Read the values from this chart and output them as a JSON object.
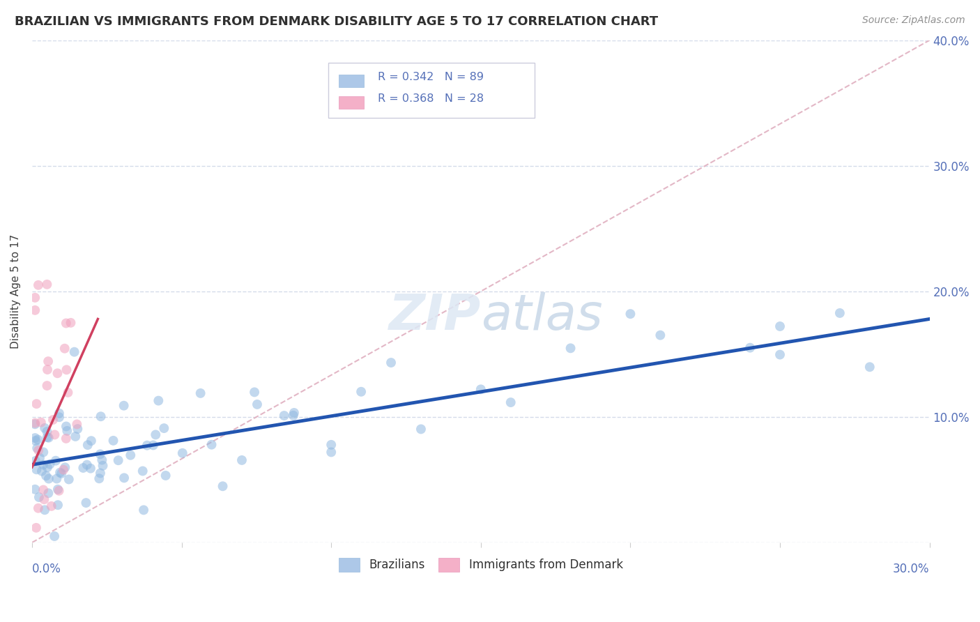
{
  "title": "BRAZILIAN VS IMMIGRANTS FROM DENMARK DISABILITY AGE 5 TO 17 CORRELATION CHART",
  "source": "Source: ZipAtlas.com",
  "ylabel_label": "Disability Age 5 to 17",
  "xlim": [
    0.0,
    0.3
  ],
  "ylim": [
    0.0,
    0.4
  ],
  "ytick_positions": [
    0.0,
    0.1,
    0.2,
    0.3,
    0.4
  ],
  "ytick_labels": [
    "",
    "10.0%",
    "20.0%",
    "30.0%",
    "40.0%"
  ],
  "legend_color1": "#adc8e8",
  "legend_color2": "#f4b0c8",
  "scatter_color_brazil": "#90b8e0",
  "scatter_color_denmark": "#f0a0bc",
  "line_color_brazil": "#2255b0",
  "line_color_denmark": "#d04060",
  "diagonal_color": "#e0b0c0",
  "background_color": "#ffffff",
  "grid_color": "#d0d8e8",
  "title_color": "#303030",
  "axis_label_color": "#5570b8",
  "brazil_line_x": [
    0.0,
    0.3
  ],
  "brazil_line_y": [
    0.062,
    0.178
  ],
  "denmark_line_x": [
    0.0,
    0.022
  ],
  "denmark_line_y": [
    0.06,
    0.178
  ],
  "marker_size": 100,
  "marker_alpha": 0.55
}
